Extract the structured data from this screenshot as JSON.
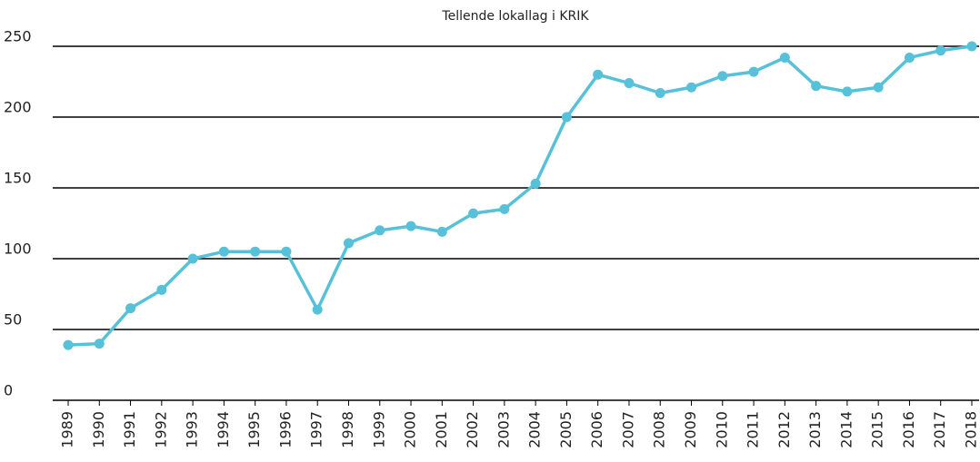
{
  "chart_data": {
    "type": "line",
    "title": "Tellende lokallag i KRIK",
    "categories": [
      "1989",
      "1990",
      "1991",
      "1992",
      "1993",
      "1994",
      "1995",
      "1996",
      "1997",
      "1998",
      "1999",
      "2000",
      "2001",
      "2002",
      "2003",
      "2004",
      "2005",
      "2006",
      "2007",
      "2008",
      "2009",
      "2010",
      "2011",
      "2012",
      "2013",
      "2014",
      "2015",
      "2016",
      "2017",
      "2018"
    ],
    "values": [
      39,
      40,
      65,
      78,
      100,
      105,
      105,
      105,
      64,
      111,
      120,
      123,
      119,
      132,
      135,
      153,
      200,
      230,
      224,
      217,
      221,
      229,
      232,
      242,
      222,
      218,
      221,
      242,
      247,
      250
    ],
    "color": "#56c1d9",
    "ylim": [
      0,
      250
    ],
    "yticks": [
      0,
      50,
      100,
      150,
      200,
      250
    ],
    "grid": true
  }
}
